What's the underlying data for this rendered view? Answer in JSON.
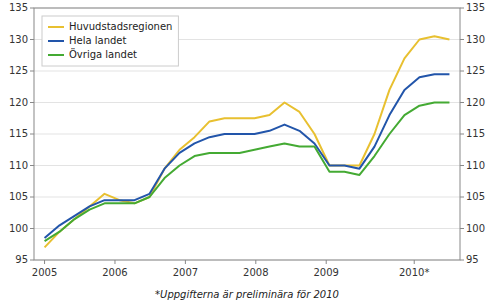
{
  "chart_data": {
    "type": "line",
    "x": [
      2005,
      2005.212962962963,
      2005.425925925926,
      2005.638888888889,
      2005.851851851852,
      2006.064814814815,
      2006.277777777778,
      2006.490740740741,
      2006.703703703704,
      2006.916666666667,
      2007.12962962963,
      2007.342592592593,
      2007.555555555556,
      2007.768518518519,
      2007.981481481481,
      2008.194444444444,
      2008.407407407407,
      2008.62037037037,
      2008.833333333333,
      2009.046296296296,
      2009.259259259259,
      2009.472222222222,
      2009.685185185185,
      2009.898148148148,
      2010.111111111111,
      2010.324074074074,
      2010.537037037037,
      2010.75
    ],
    "series": [
      {
        "name": "Huvudstadsregionen",
        "color": "#e8c030",
        "values": [
          97.0,
          99.5,
          101.5,
          103.5,
          105.5,
          104.5,
          104.0,
          105.0,
          109.5,
          112.5,
          114.5,
          117.0,
          117.5,
          117.5,
          117.5,
          118.0,
          120.0,
          118.5,
          115.0,
          110.0,
          110.0,
          110.0,
          115.0,
          122.0,
          127.0,
          130.0,
          130.5,
          130.0
        ]
      },
      {
        "name": "Hela landet",
        "color": "#2255aa",
        "values": [
          98.5,
          100.5,
          102.0,
          103.5,
          104.5,
          104.5,
          104.5,
          105.5,
          109.5,
          112.0,
          113.5,
          114.5,
          115.0,
          115.0,
          115.0,
          115.5,
          116.5,
          115.5,
          113.5,
          110.0,
          110.0,
          109.5,
          113.0,
          118.0,
          122.0,
          124.0,
          124.5,
          124.5
        ]
      },
      {
        "name": "Övriga landet",
        "color": "#44aa33",
        "values": [
          98.0,
          99.5,
          101.5,
          103.0,
          104.0,
          104.0,
          104.0,
          105.0,
          108.0,
          110.0,
          111.5,
          112.0,
          112.0,
          112.0,
          112.5,
          113.0,
          113.5,
          113.0,
          113.0,
          109.0,
          109.0,
          108.5,
          111.5,
          115.0,
          118.0,
          119.5,
          120.0,
          120.0
        ]
      }
    ],
    "xlim": [
      2004.85,
      2010.9
    ],
    "xticks": [
      2005,
      2006,
      2007,
      2008,
      2009,
      {
        "value": 2010.25,
        "label": "2010*"
      }
    ],
    "ylim": [
      95,
      135
    ],
    "yticks": [
      95,
      100,
      105,
      110,
      115,
      120,
      125,
      130,
      135
    ],
    "y2lim": [
      95,
      135
    ],
    "y2ticks": [
      95,
      100,
      105,
      110,
      115,
      120,
      125,
      130,
      135
    ],
    "grid": true,
    "legend": "upper left",
    "annotations": [
      "*Uppgifterna är preliminära för 2010"
    ]
  }
}
